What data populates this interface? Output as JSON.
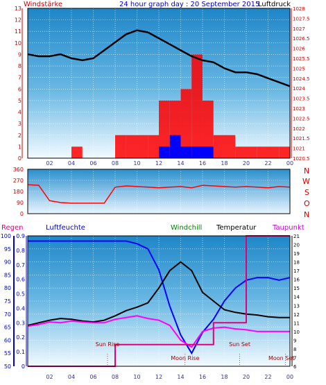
{
  "header": {
    "windstarke": "Windstärke",
    "title": "24 hour graph day : 20 September 2015",
    "luftdruck": "Luftdruck"
  },
  "colors": {
    "wind_gust": "#ff0000",
    "wind_avg": "#0000ff",
    "pressure": "#000000",
    "humidity": "#0000ff",
    "temperature": "#000000",
    "dewpoint": "#ff00ff",
    "rain": "#e0007a",
    "windchill": "#008000",
    "astro_label": "#990000",
    "grid": "#ffffff",
    "axis_text": "#cc0000"
  },
  "x_ticks": [
    "02",
    "04",
    "06",
    "08",
    "10",
    "12",
    "14",
    "16",
    "18",
    "20",
    "22",
    "00"
  ],
  "chart_data": [
    {
      "type": "line",
      "panel": "wind_pressure",
      "title": "24 hour graph day : 20 September 2015",
      "xlabel": "",
      "ylabel_left": "Windstärke",
      "ylabel_right": "Luftdruck",
      "x": [
        0,
        1,
        2,
        3,
        4,
        5,
        6,
        7,
        8,
        9,
        10,
        11,
        12,
        13,
        14,
        15,
        16,
        17,
        18,
        19,
        20,
        21,
        22,
        23,
        24
      ],
      "ylim_left": [
        0,
        13
      ],
      "yticks_left": [
        "0",
        "1",
        "2",
        "3",
        "4",
        "5",
        "6",
        "7",
        "8",
        "9",
        "10",
        "11",
        "12",
        "13"
      ],
      "ylim_right": [
        1020.5,
        1028
      ],
      "yticks_right": [
        "1020.5",
        "1021",
        "1021.5",
        "1022",
        "1022.5",
        "1023",
        "1023.5",
        "1024",
        "1024.5",
        "1025",
        "1025.5",
        "1026",
        "1026.5",
        "1027",
        "1027.5",
        "1028"
      ],
      "series": [
        {
          "name": "Luftdruck",
          "axis": "right",
          "values": [
            1025.7,
            1025.6,
            1025.6,
            1025.7,
            1025.5,
            1025.4,
            1025.5,
            1025.9,
            1026.3,
            1026.7,
            1026.9,
            1026.8,
            1026.5,
            1026.2,
            1025.9,
            1025.6,
            1025.4,
            1025.3,
            1025.0,
            1024.8,
            1024.8,
            1024.7,
            1024.5,
            1024.3,
            1024.1
          ]
        },
        {
          "name": "Wind gust",
          "axis": "left",
          "values": [
            0,
            0,
            0,
            0,
            1,
            0,
            0,
            0,
            2,
            2,
            2,
            2,
            5,
            5,
            6,
            9,
            5,
            2,
            2,
            1,
            1,
            1,
            1,
            1,
            1
          ]
        },
        {
          "name": "Wind average",
          "axis": "left",
          "values": [
            0,
            0,
            0,
            0,
            0,
            0,
            0,
            0,
            0,
            0,
            0,
            0,
            1,
            2,
            1,
            1,
            1,
            0,
            0,
            0,
            0,
            0,
            0,
            0,
            0
          ]
        }
      ]
    },
    {
      "type": "line",
      "panel": "wind_direction",
      "x": [
        0,
        1,
        2,
        3,
        4,
        5,
        6,
        7,
        8,
        9,
        10,
        11,
        12,
        13,
        14,
        15,
        16,
        17,
        18,
        19,
        20,
        21,
        22,
        23,
        24
      ],
      "ylim_left": [
        0,
        360
      ],
      "yticks_left": [
        "0",
        "90",
        "180",
        "270",
        "360"
      ],
      "compass": [
        "N",
        "W",
        "S",
        "O",
        "N"
      ],
      "series": [
        {
          "name": "Wind direction",
          "values": [
            235,
            230,
            105,
            90,
            85,
            85,
            85,
            85,
            215,
            225,
            220,
            215,
            210,
            215,
            220,
            210,
            230,
            225,
            220,
            215,
            220,
            215,
            210,
            220,
            215
          ]
        }
      ]
    },
    {
      "type": "line",
      "panel": "temperature_humidity",
      "legend": [
        "Regen",
        "Luftfeuchte",
        "Windchill",
        "Temperatur",
        "Taupunkt"
      ],
      "x": [
        0,
        1,
        2,
        3,
        4,
        5,
        6,
        7,
        8,
        9,
        10,
        11,
        12,
        13,
        14,
        15,
        16,
        17,
        18,
        19,
        20,
        21,
        22,
        23,
        24
      ],
      "yticks_regen": [
        "0",
        "0.1",
        "0.2",
        "0.3",
        "0.4",
        "0.5",
        "0.6",
        "0.7",
        "0.8",
        "0.9"
      ],
      "yticks_luftfeuchte": [
        "50",
        "55",
        "60",
        "65",
        "70",
        "75",
        "80",
        "85",
        "90",
        "95",
        "100"
      ],
      "yticks_temperature": [
        "6",
        "7",
        "8",
        "9",
        "10",
        "11",
        "12",
        "13",
        "14",
        "15",
        "16",
        "17",
        "18",
        "19",
        "20",
        "21"
      ],
      "ylim_regen": [
        0,
        0.9
      ],
      "ylim_luftfeuchte": [
        50,
        100
      ],
      "ylim_temperature": [
        6,
        21
      ],
      "series": [
        {
          "name": "Luftfeuchte",
          "axis": "luftfeuchte",
          "values": [
            98,
            98,
            98,
            98,
            98,
            98,
            98,
            98,
            98,
            98,
            97,
            95,
            87,
            73,
            62,
            55,
            63,
            68,
            75,
            80,
            83,
            84,
            84,
            83,
            84
          ]
        },
        {
          "name": "Temperatur",
          "axis": "temperature",
          "values": [
            10.7,
            11.0,
            11.3,
            11.5,
            11.4,
            11.2,
            11.1,
            11.3,
            11.8,
            12.4,
            12.8,
            13.3,
            15.0,
            17.0,
            18.0,
            17.0,
            14.5,
            13.5,
            12.5,
            12.2,
            12.0,
            11.9,
            11.7,
            11.6,
            11.6
          ]
        },
        {
          "name": "Taupunkt",
          "axis": "temperature",
          "values": [
            10.6,
            10.8,
            11.1,
            11.0,
            11.2,
            11.1,
            11.0,
            11.0,
            11.4,
            11.6,
            11.8,
            11.5,
            11.3,
            10.7,
            9.0,
            8.2,
            10.0,
            10.4,
            10.5,
            10.3,
            10.2,
            10.0,
            10.0,
            10.0,
            10.0
          ]
        },
        {
          "name": "Regen",
          "axis": "regen",
          "values": [
            0,
            0,
            0,
            0,
            0,
            0,
            0,
            0,
            0.15,
            0.15,
            0.15,
            0.15,
            0.15,
            0.15,
            0.15,
            0.15,
            0.15,
            0.3,
            0.3,
            0.3,
            0.9,
            0.9,
            0.9,
            0.9,
            0.9
          ]
        }
      ],
      "events": [
        {
          "label": "Sun Rise",
          "x": 7.3
        },
        {
          "label": "Moon Rise",
          "x": 14.4
        },
        {
          "label": "Sun Set",
          "x": 19.4
        },
        {
          "label": "Moon Set",
          "x": 23.6
        }
      ]
    }
  ]
}
